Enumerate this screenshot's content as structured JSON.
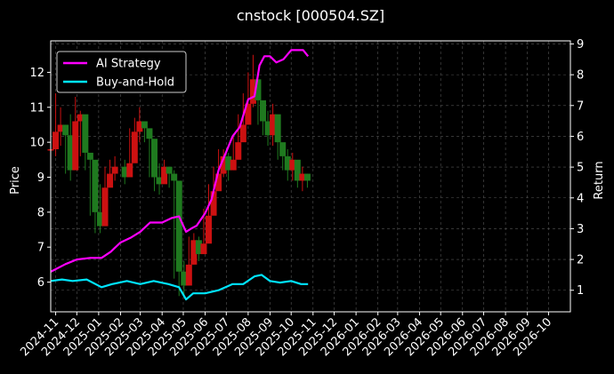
{
  "chart_data": {
    "type": "line",
    "title": "cnstock [000504.SZ]",
    "ylabel": "Price",
    "y2label": "Return",
    "ylim": [
      5.15,
      12.9
    ],
    "y2lim": [
      0.3,
      9.1
    ],
    "xlim": [
      "2024-10-25",
      "2026-11-01"
    ],
    "yticks": [
      6,
      7,
      8,
      9,
      10,
      11,
      12
    ],
    "y2ticks": [
      1,
      2,
      3,
      4,
      5,
      6,
      7,
      8,
      9
    ],
    "xticks": [
      "2024-11",
      "2024-12",
      "2025-01",
      "2025-02",
      "2025-03",
      "2025-04",
      "2025-05",
      "2025-06",
      "2025-07",
      "2025-08",
      "2025-09",
      "2025-10",
      "2025-11",
      "2025-12",
      "2026-01",
      "2026-02",
      "2026-03",
      "2026-04",
      "2026-05",
      "2026-06",
      "2026-07",
      "2026-08",
      "2026-09",
      "2026-10"
    ],
    "grid": true,
    "legend_position": "top-left",
    "colors": {
      "background": "#000000",
      "grid": "#555555",
      "up": "#cc1111",
      "down": "#1f7a1f"
    },
    "price": {
      "name": "cnstock price (candlestick)",
      "dates": [
        "2024-10-25",
        "2024-11-01",
        "2024-11-08",
        "2024-11-15",
        "2024-11-22",
        "2024-11-29",
        "2024-12-06",
        "2024-12-13",
        "2024-12-20",
        "2024-12-27",
        "2025-01-03",
        "2025-01-10",
        "2025-01-17",
        "2025-01-24",
        "2025-02-07",
        "2025-02-14",
        "2025-02-21",
        "2025-02-28",
        "2025-03-07",
        "2025-03-14",
        "2025-03-21",
        "2025-03-28",
        "2025-04-04",
        "2025-04-11",
        "2025-04-18",
        "2025-04-25",
        "2025-05-02",
        "2025-05-09",
        "2025-05-16",
        "2025-05-23",
        "2025-05-30",
        "2025-06-06",
        "2025-06-13",
        "2025-06-20",
        "2025-06-27",
        "2025-07-04",
        "2025-07-11",
        "2025-07-18",
        "2025-07-25",
        "2025-08-01",
        "2025-08-08",
        "2025-08-15",
        "2025-08-22",
        "2025-08-29",
        "2025-09-05",
        "2025-09-12",
        "2025-09-19",
        "2025-09-26",
        "2025-10-03",
        "2025-10-10",
        "2025-10-17",
        "2025-10-24"
      ],
      "close": [
        9.8,
        10.3,
        10.5,
        10.2,
        9.2,
        10.6,
        10.8,
        9.7,
        9.5,
        8.0,
        7.6,
        8.7,
        9.1,
        9.3,
        9.0,
        9.4,
        10.3,
        10.6,
        10.4,
        10.1,
        9.0,
        8.8,
        9.3,
        9.1,
        8.9,
        6.3,
        5.9,
        6.5,
        7.2,
        6.8,
        7.1,
        7.9,
        8.6,
        9.1,
        9.6,
        9.2,
        9.5,
        10.0,
        10.5,
        11.1,
        11.8,
        11.2,
        10.6,
        10.2,
        10.8,
        10.0,
        9.6,
        9.2,
        9.5,
        8.9,
        9.1,
        8.9
      ],
      "range_low": [
        9.3,
        9.6,
        9.9,
        9.1,
        8.9,
        9.9,
        9.6,
        9.2,
        7.9,
        7.4,
        7.4,
        8.4,
        8.8,
        8.9,
        8.8,
        9.1,
        9.9,
        10.0,
        10.0,
        9.0,
        8.6,
        8.5,
        8.9,
        8.7,
        6.1,
        5.6,
        5.6,
        6.1,
        6.5,
        6.6,
        6.8,
        7.6,
        8.3,
        8.7,
        9.0,
        8.9,
        9.2,
        9.6,
        10.1,
        10.6,
        11.0,
        10.5,
        10.2,
        9.9,
        9.9,
        9.5,
        9.2,
        8.9,
        8.9,
        8.7,
        8.6,
        8.7
      ],
      "range_high": [
        10.4,
        11.4,
        11.0,
        10.5,
        10.8,
        11.3,
        10.9,
        9.8,
        9.6,
        8.2,
        8.8,
        9.3,
        9.5,
        9.6,
        9.5,
        10.4,
        10.7,
        11.0,
        10.6,
        10.3,
        9.2,
        9.4,
        9.5,
        9.3,
        9.2,
        6.5,
        6.6,
        7.3,
        7.4,
        7.3,
        8.1,
        8.8,
        9.3,
        9.8,
        9.8,
        9.7,
        10.2,
        10.8,
        11.4,
        12.0,
        12.5,
        11.4,
        11.0,
        10.9,
        11.1,
        10.3,
        9.8,
        9.8,
        9.7,
        9.2,
        9.3,
        9.1
      ]
    },
    "series": [
      {
        "name": "AI Strategy",
        "color": "#ff00ff",
        "axis": "right",
        "x": [
          "2024-10-25",
          "2024-11-15",
          "2024-12-01",
          "2024-12-20",
          "2025-01-05",
          "2025-01-18",
          "2025-02-01",
          "2025-02-15",
          "2025-03-01",
          "2025-03-15",
          "2025-04-01",
          "2025-04-15",
          "2025-04-25",
          "2025-05-05",
          "2025-05-12",
          "2025-05-20",
          "2025-06-01",
          "2025-06-10",
          "2025-06-20",
          "2025-07-01",
          "2025-07-10",
          "2025-07-20",
          "2025-08-01",
          "2025-08-10",
          "2025-08-17",
          "2025-08-24",
          "2025-09-01",
          "2025-09-10",
          "2025-09-20",
          "2025-10-01",
          "2025-10-10",
          "2025-10-18",
          "2025-10-25"
        ],
        "y": [
          1.6,
          1.85,
          2.0,
          2.05,
          2.05,
          2.25,
          2.55,
          2.7,
          2.9,
          3.2,
          3.2,
          3.35,
          3.4,
          2.9,
          3.0,
          3.1,
          3.5,
          3.95,
          4.9,
          5.5,
          6.0,
          6.3,
          7.2,
          7.3,
          8.3,
          8.6,
          8.6,
          8.4,
          8.5,
          8.8,
          8.8,
          8.8,
          8.6
        ]
      },
      {
        "name": "Buy-and-Hold",
        "color": "#00e5ff",
        "axis": "right",
        "x": [
          "2024-10-25",
          "2024-11-10",
          "2024-11-25",
          "2024-12-15",
          "2025-01-05",
          "2025-01-20",
          "2025-02-10",
          "2025-03-01",
          "2025-03-20",
          "2025-04-10",
          "2025-04-25",
          "2025-05-05",
          "2025-05-15",
          "2025-06-01",
          "2025-06-20",
          "2025-07-10",
          "2025-07-25",
          "2025-08-10",
          "2025-08-20",
          "2025-09-01",
          "2025-09-15",
          "2025-10-01",
          "2025-10-15",
          "2025-10-25"
        ],
        "y": [
          1.3,
          1.35,
          1.3,
          1.35,
          1.1,
          1.2,
          1.3,
          1.2,
          1.3,
          1.2,
          1.1,
          0.7,
          0.9,
          0.9,
          1.0,
          1.2,
          1.2,
          1.45,
          1.5,
          1.3,
          1.25,
          1.3,
          1.2,
          1.2
        ]
      }
    ]
  }
}
